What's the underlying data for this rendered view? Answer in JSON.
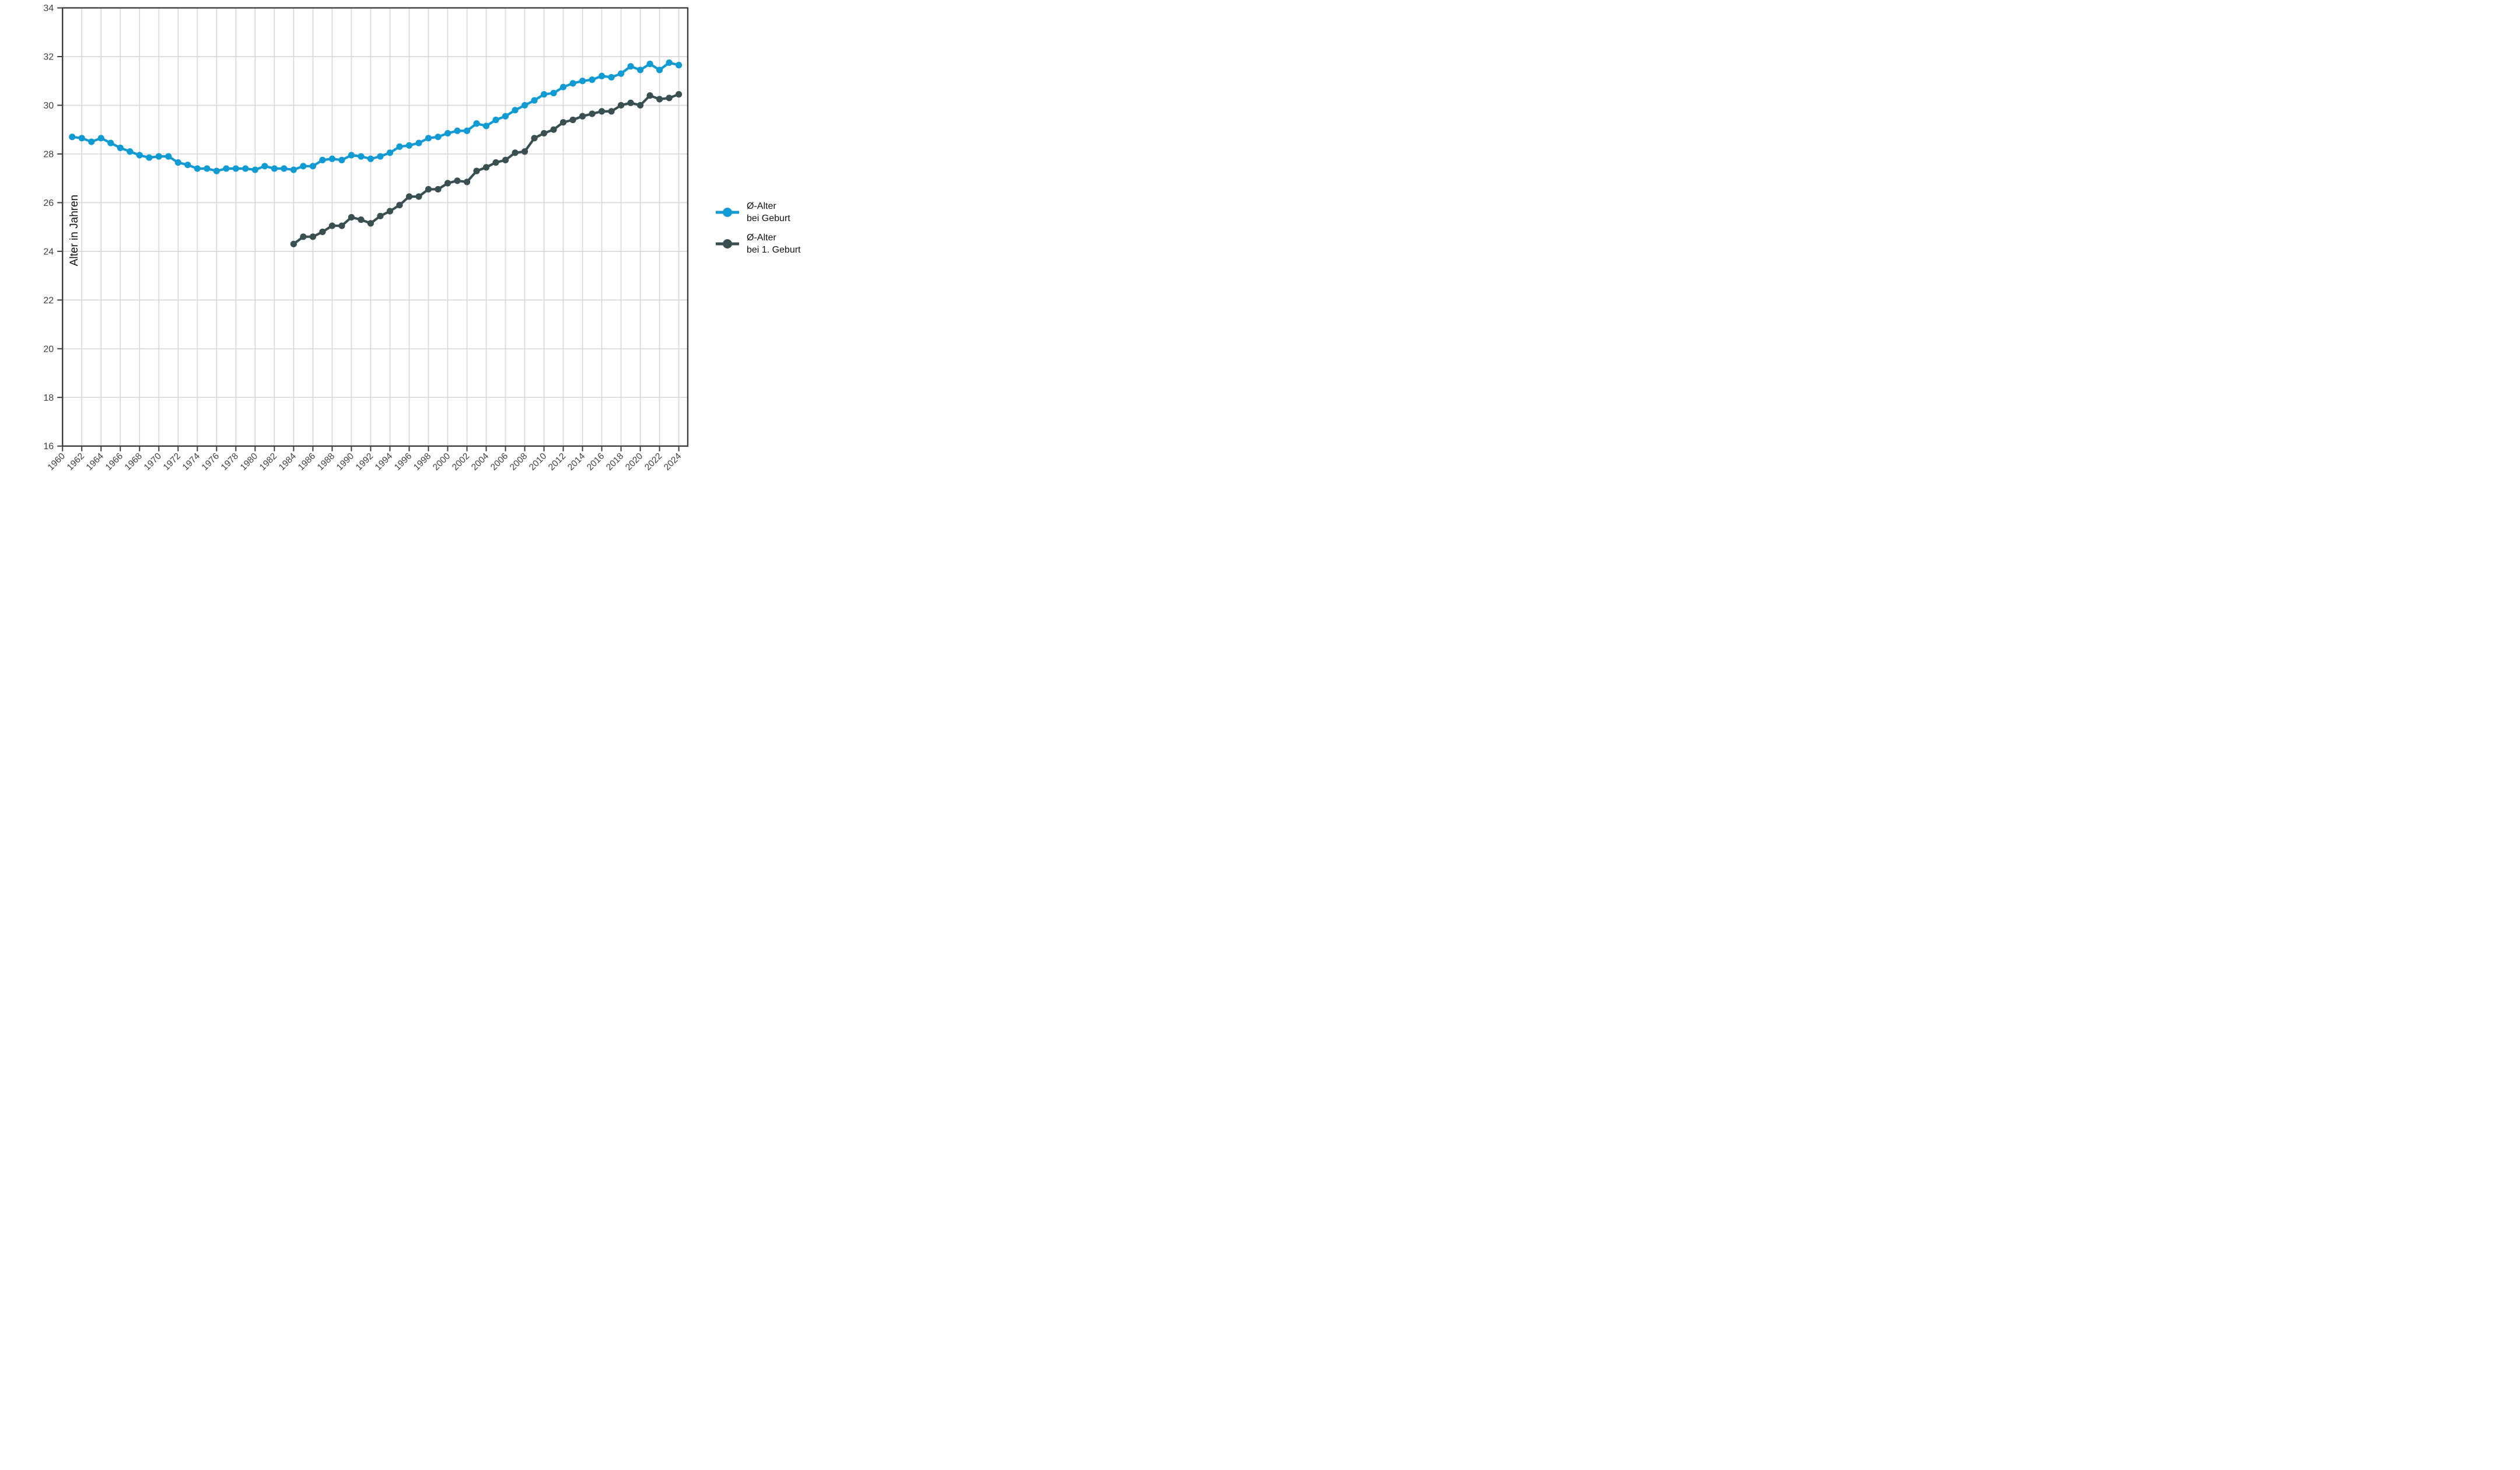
{
  "chart_data": {
    "type": "line",
    "title": "",
    "xlabel": "",
    "ylabel": "Alter in Jahren",
    "x_ticks": [
      1960,
      1962,
      1964,
      1966,
      1968,
      1970,
      1972,
      1974,
      1976,
      1978,
      1980,
      1982,
      1984,
      1986,
      1988,
      1990,
      1992,
      1994,
      1996,
      1998,
      2000,
      2002,
      2004,
      2006,
      2008,
      2010,
      2012,
      2014,
      2016,
      2018,
      2020,
      2022,
      2024
    ],
    "y_ticks": [
      16,
      18,
      20,
      22,
      24,
      26,
      28,
      30,
      32,
      34
    ],
    "ylim": [
      16,
      34
    ],
    "xlim": [
      1960,
      2025
    ],
    "grid": "major",
    "legend_position": "right",
    "series": [
      {
        "name": "Ø-Alter bei Geburt",
        "color": "#129bd2",
        "start_year": 1961,
        "values": [
          28.7,
          28.65,
          28.5,
          28.65,
          28.45,
          28.25,
          28.1,
          27.95,
          27.85,
          27.9,
          27.9,
          27.65,
          27.55,
          27.4,
          27.4,
          27.3,
          27.4,
          27.4,
          27.4,
          27.35,
          27.5,
          27.4,
          27.4,
          27.35,
          27.5,
          27.5,
          27.75,
          27.8,
          27.75,
          27.95,
          27.9,
          27.8,
          27.9,
          28.05,
          28.3,
          28.35,
          28.45,
          28.65,
          28.7,
          28.85,
          28.95,
          28.95,
          29.25,
          29.15,
          29.4,
          29.55,
          29.8,
          30.0,
          30.2,
          30.45,
          30.5,
          30.75,
          30.9,
          31.0,
          31.05,
          31.2,
          31.15,
          31.3,
          31.6,
          31.45,
          31.7,
          31.45,
          31.75,
          31.65
        ]
      },
      {
        "name": "Ø-Alter bei 1. Geburt",
        "color": "#3a4f52",
        "start_year": 1984,
        "values": [
          24.3,
          24.6,
          24.6,
          24.8,
          25.05,
          25.05,
          25.4,
          25.3,
          25.15,
          25.45,
          25.65,
          25.9,
          26.25,
          26.25,
          26.55,
          26.55,
          26.8,
          26.9,
          26.85,
          27.3,
          27.45,
          27.65,
          27.75,
          28.05,
          28.1,
          28.65,
          28.85,
          29.0,
          29.3,
          29.4,
          29.55,
          29.65,
          29.75,
          29.75,
          30.0,
          30.1,
          30.0,
          30.4,
          30.25,
          30.3,
          30.45
        ]
      }
    ]
  },
  "axis": {
    "y_title": "Alter in Jahren"
  },
  "legend": {
    "items": [
      {
        "line1": "Ø-Alter",
        "line2": "bei Geburt"
      },
      {
        "line1": "Ø-Alter",
        "line2": "bei 1. Geburt"
      }
    ]
  },
  "colors": {
    "series_birth": "#129bd2",
    "series_first_birth": "#3a4f52",
    "grid": "#d9d9d9",
    "axis": "#3f3f3f",
    "text": "#3f3f3f"
  }
}
